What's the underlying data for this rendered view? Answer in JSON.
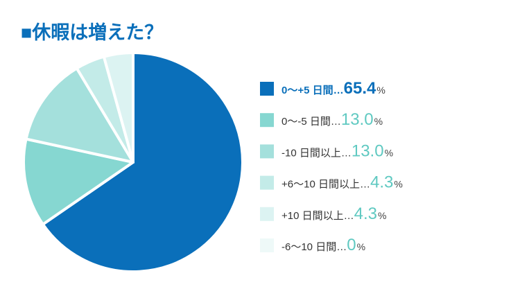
{
  "chart_data": {
    "type": "pie",
    "title": "■休暇は増えた？",
    "categories": [
      "0〜+5 日間…",
      "0〜-5 日間…",
      "-10 日間以上…",
      "+6〜10 日間以上…",
      "+10 日間以上…",
      "-6〜10 日間…"
    ],
    "values": [
      65.4,
      13.0,
      13.0,
      4.3,
      4.3,
      0
    ],
    "value_labels": [
      "65.4",
      "13.0",
      "13.0",
      "4.3",
      "4.3",
      "0"
    ],
    "unit": "%",
    "colors": [
      "#0a6fba",
      "#86d7d1",
      "#a4e0dc",
      "#c3ebe8",
      "#dcf3f2",
      "#eef9f8"
    ]
  }
}
